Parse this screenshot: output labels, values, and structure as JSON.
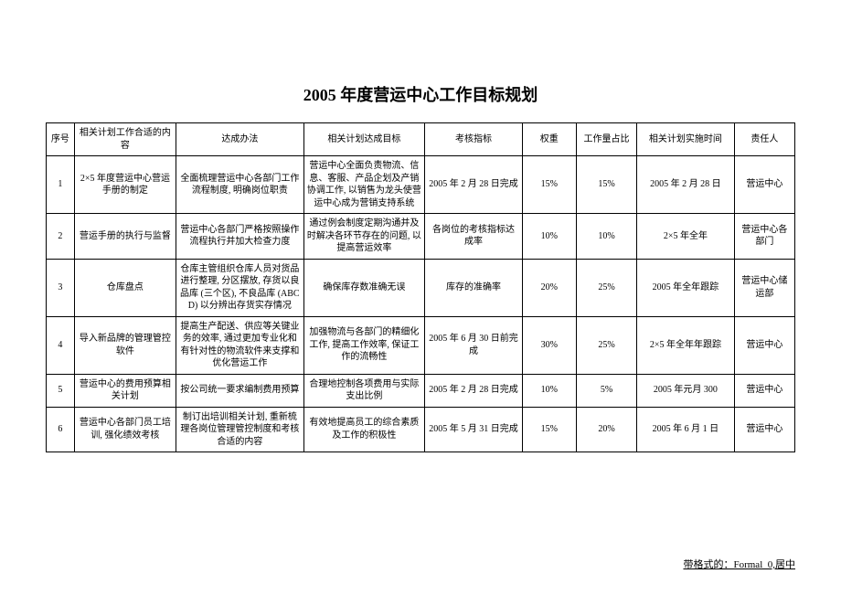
{
  "title": "2005 年度营运中心工作目标规划",
  "columns": [
    "序号",
    "相关计划工作合适的内容",
    "达成办法",
    "相关计划达成目标",
    "考核指标",
    "权重",
    "工作量占比",
    "相关计划实施时间",
    "责任人"
  ],
  "rows": [
    {
      "seq": "1",
      "content": "2×5 年度营运中心营运手册的制定",
      "method": "全面梳理营运中心各部门工作流程制度, 明确岗位职责",
      "goal": "营运中心全面负责物流、信息、客服、产品企划及产销协调工作, 以销售为龙头使营运中心成为营销支持系统",
      "kpi": "2005 年 2 月 28 日完成",
      "weight": "15%",
      "pct": "15%",
      "time": "2005 年 2 月 28 日",
      "owner": "营运中心"
    },
    {
      "seq": "2",
      "content": "营运手册的执行与监督",
      "method": "营运中心各部门严格按照操作流程执行并加大检查力度",
      "goal": "通过例会制度定期沟通并及时解决各环节存在的问题, 以提高营运效率",
      "kpi": "各岗位的考核指标达成率",
      "weight": "10%",
      "pct": "10%",
      "time": "2×5 年全年",
      "owner": "营运中心各部门"
    },
    {
      "seq": "3",
      "content": "仓库盘点",
      "method": "仓库主管组织仓库人员对货品进行整理, 分区摆放, 存货以良品库 (三个区), 不良品库 (ABCD) 以分辨出存货实存情况",
      "goal": "确保库存数准确无误",
      "kpi": "库存的准确率",
      "weight": "20%",
      "pct": "25%",
      "time": "2005 年全年跟踪",
      "owner": "营运中心储运部"
    },
    {
      "seq": "4",
      "content": "导入新品牌的管理管控软件",
      "method": "提高生产配送、供应等关键业务的效率, 通过更加专业化和有针对性的物流软件来支撑和优化营运工作",
      "goal": "加强物流与各部门的精细化工作, 提高工作效率, 保证工作的流畅性",
      "kpi": "2005 年 6 月 30 日前完成",
      "weight": "30%",
      "pct": "25%",
      "time": "2×5 年全年年跟踪",
      "owner": "营运中心"
    },
    {
      "seq": "5",
      "content": "营运中心的费用预算相关计划",
      "method": "按公司统一要求编制费用预算",
      "goal": "合理地控制各项费用与实际支出比例",
      "kpi": "2005 年 2 月 28 日完成",
      "weight": "10%",
      "pct": "5%",
      "time": "2005 年元月 300",
      "owner": "营运中心"
    },
    {
      "seq": "6",
      "content": "营运中心各部门员工培训, 强化绩效考核",
      "method": "制订出培训相关计划, 重新梳理各岗位管理管控制度和考核合适的内容",
      "goal": "有效地提高员工的综合素质及工作的积极性",
      "kpi": "2005 年 5 月 31 日完成",
      "weight": "15%",
      "pct": "20%",
      "time": "2005 年 6 月 1 日",
      "owner": "营运中心"
    }
  ],
  "footnote": "带格式的：Formal_0,居中"
}
